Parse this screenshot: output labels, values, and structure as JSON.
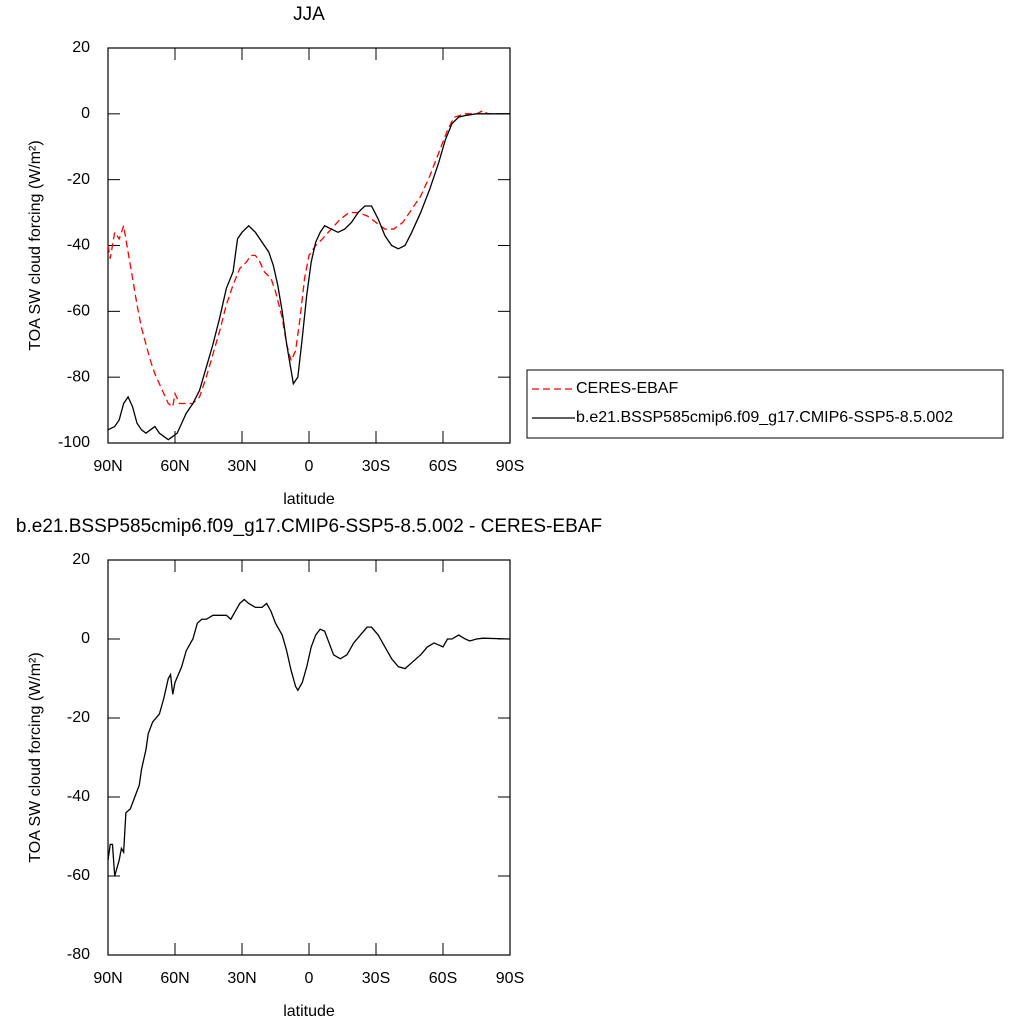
{
  "chart_data": [
    {
      "type": "line",
      "title": "JJA",
      "xlabel": "latitude",
      "ylabel": "TOA SW cloud forcing (W/m²)",
      "xlim": [
        90,
        -90
      ],
      "xticks": [
        {
          "value": 90,
          "label": "90N"
        },
        {
          "value": 60,
          "label": "60N"
        },
        {
          "value": 30,
          "label": "30N"
        },
        0,
        {
          "value": -30,
          "label": "30S"
        },
        {
          "value": -60,
          "label": "60S"
        },
        {
          "value": -90,
          "label": "90S"
        }
      ],
      "ylim": [
        -100,
        20
      ],
      "yticks": [
        -100,
        -80,
        -60,
        -40,
        -20,
        0,
        20
      ],
      "legend": "right",
      "series": [
        {
          "name": "CERES-EBAF",
          "color": "#ff0000",
          "style": "dashed",
          "x": [
            90,
            89,
            87,
            85,
            83,
            81,
            79,
            77,
            75,
            73,
            71,
            69,
            67,
            65,
            63,
            61,
            60,
            58,
            55,
            52,
            49,
            46,
            43,
            40,
            37,
            34,
            31,
            28,
            26,
            24,
            22,
            20,
            17,
            15,
            12,
            10,
            8,
            6,
            4,
            2,
            0,
            -3,
            -6,
            -10,
            -14,
            -18,
            -22,
            -26,
            -30,
            -34,
            -38,
            -42,
            -46,
            -50,
            -54,
            -58,
            -62,
            -65,
            -70,
            -75,
            -78,
            -80,
            -85,
            -90
          ],
          "values": [
            -40,
            -44,
            -36,
            -38,
            -34,
            -42,
            -50,
            -58,
            -65,
            -70,
            -75,
            -79,
            -82,
            -85,
            -88,
            -89,
            -85,
            -88,
            -88,
            -88,
            -86,
            -80,
            -73,
            -66,
            -58,
            -52,
            -47,
            -45,
            -43,
            -43,
            -45,
            -48,
            -50,
            -54,
            -62,
            -70,
            -75,
            -72,
            -62,
            -50,
            -43,
            -40,
            -38,
            -35,
            -32,
            -30,
            -30,
            -31,
            -33,
            -35,
            -35,
            -33,
            -29,
            -25,
            -19,
            -12,
            -5,
            -1,
            0,
            0,
            1,
            0,
            0,
            0
          ]
        },
        {
          "name": "b.e21.BSSP585cmip6.f09_g17.CMIP6-SSP5-8.5.002",
          "color": "#000000",
          "style": "solid",
          "x": [
            90,
            87,
            85,
            83,
            81,
            79,
            77,
            75,
            73,
            71,
            69,
            67,
            65,
            63,
            61,
            59,
            57,
            55,
            52,
            49,
            46,
            43,
            40,
            37,
            34,
            32,
            30,
            27,
            24,
            21,
            18,
            16,
            14,
            12,
            10,
            8,
            7,
            5,
            3,
            1,
            -1,
            -3,
            -5,
            -7,
            -10,
            -13,
            -16,
            -19,
            -22,
            -25,
            -28,
            -31,
            -34,
            -37,
            -40,
            -43,
            -46,
            -50,
            -54,
            -58,
            -61,
            -64,
            -67,
            -70,
            -75,
            -90
          ],
          "values": [
            -96,
            -95,
            -93,
            -88,
            -86,
            -89,
            -94,
            -96,
            -97,
            -96,
            -95,
            -97,
            -98,
            -99,
            -98,
            -97,
            -94,
            -91,
            -88,
            -84,
            -77,
            -70,
            -62,
            -53,
            -48,
            -38,
            -36,
            -34,
            -36,
            -39,
            -42,
            -46,
            -52,
            -60,
            -70,
            -78,
            -82,
            -80,
            -68,
            -55,
            -45,
            -39,
            -36,
            -34,
            -35,
            -36,
            -35,
            -33,
            -30,
            -28,
            -28,
            -32,
            -37,
            -40,
            -41,
            -40,
            -36,
            -30,
            -23,
            -15,
            -8,
            -3,
            -1,
            -0.5,
            0,
            0
          ]
        }
      ]
    },
    {
      "type": "line",
      "title": "b.e21.BSSP585cmip6.f09_g17.CMIP6-SSP5-8.5.002 - CERES-EBAF",
      "xlabel": "latitude",
      "ylabel": "TOA SW cloud forcing (W/m²)",
      "xlim": [
        90,
        -90
      ],
      "xticks": [
        {
          "value": 90,
          "label": "90N"
        },
        {
          "value": 60,
          "label": "60N"
        },
        {
          "value": 30,
          "label": "30N"
        },
        0,
        {
          "value": -30,
          "label": "30S"
        },
        {
          "value": -60,
          "label": "60S"
        },
        {
          "value": -90,
          "label": "90S"
        }
      ],
      "ylim": [
        -80,
        20
      ],
      "yticks": [
        -80,
        -60,
        -40,
        -20,
        0,
        20
      ],
      "series": [
        {
          "color": "#000000",
          "style": "solid",
          "x": [
            90,
            89,
            88,
            87,
            85,
            84,
            83,
            82,
            80,
            78,
            76,
            75,
            73,
            72,
            70,
            67,
            65,
            63,
            62,
            61,
            60,
            57,
            55,
            52,
            50,
            48,
            46,
            43,
            40,
            37,
            35,
            33,
            31,
            29,
            27,
            24,
            21,
            19,
            17,
            15,
            12,
            10,
            8,
            6,
            5,
            3,
            1,
            -1,
            -3,
            -5,
            -7,
            -9,
            -11,
            -14,
            -17,
            -20,
            -23,
            -26,
            -28,
            -31,
            -34,
            -37,
            -40,
            -43,
            -46,
            -50,
            -53,
            -56,
            -58,
            -60,
            -62,
            -64,
            -67,
            -70,
            -72,
            -75,
            -78,
            -90
          ],
          "values": [
            -56,
            -52,
            -52,
            -60,
            -56,
            -53,
            -54,
            -44,
            -43,
            -40,
            -37,
            -33,
            -28,
            -24,
            -21,
            -19,
            -15,
            -10,
            -9,
            -14,
            -11,
            -7,
            -3,
            0,
            4,
            5,
            5,
            6,
            6,
            6,
            5,
            7,
            9,
            10,
            9,
            8,
            8,
            9,
            7,
            4,
            1,
            -3,
            -8,
            -12,
            -13,
            -11,
            -7,
            -2,
            1,
            2.5,
            2,
            -1,
            -4,
            -5,
            -4,
            -1,
            1,
            3,
            3,
            1,
            -2,
            -5,
            -7,
            -7.5,
            -6,
            -4,
            -2,
            -1,
            -1.5,
            -2,
            0,
            0,
            1,
            0,
            -0.5,
            0,
            0.2,
            0
          ]
        }
      ]
    }
  ]
}
